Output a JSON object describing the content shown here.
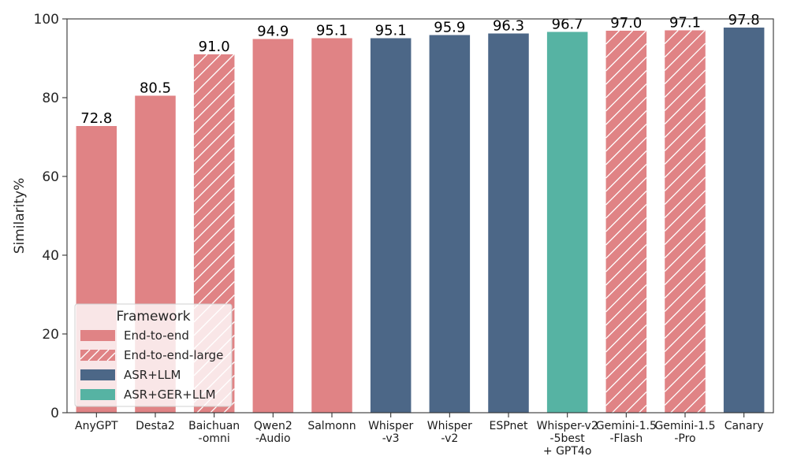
{
  "chart_data": {
    "type": "bar",
    "title": "",
    "xlabel": "",
    "ylabel": "Similarity%",
    "ylim": [
      0,
      100
    ],
    "yticks": [
      0,
      20,
      40,
      60,
      80,
      100
    ],
    "grid": false,
    "legend_position": "bottom-left",
    "legend_title": "Framework",
    "frameworks": [
      {
        "name": "End-to-end",
        "color": "#e08385",
        "hatch": false
      },
      {
        "name": "End-to-end-large",
        "color": "#e08385",
        "hatch": true
      },
      {
        "name": "ASR+LLM",
        "color": "#4c6787",
        "hatch": false
      },
      {
        "name": "ASR+GER+LLM",
        "color": "#56b3a3",
        "hatch": false
      }
    ],
    "bars": [
      {
        "category": [
          "AnyGPT"
        ],
        "value": 72.8,
        "label": "72.8",
        "framework": "End-to-end"
      },
      {
        "category": [
          "Desta2"
        ],
        "value": 80.5,
        "label": "80.5",
        "framework": "End-to-end"
      },
      {
        "category": [
          "Baichuan",
          "-omni"
        ],
        "value": 91.0,
        "label": "91.0",
        "framework": "End-to-end-large"
      },
      {
        "category": [
          "Qwen2",
          "-Audio"
        ],
        "value": 94.9,
        "label": "94.9",
        "framework": "End-to-end"
      },
      {
        "category": [
          "Salmonn"
        ],
        "value": 95.1,
        "label": "95.1",
        "framework": "End-to-end"
      },
      {
        "category": [
          "Whisper",
          "-v3"
        ],
        "value": 95.1,
        "label": "95.1",
        "framework": "ASR+LLM"
      },
      {
        "category": [
          "Whisper",
          "-v2"
        ],
        "value": 95.9,
        "label": "95.9",
        "framework": "ASR+LLM"
      },
      {
        "category": [
          "ESPnet"
        ],
        "value": 96.3,
        "label": "96.3",
        "framework": "ASR+LLM"
      },
      {
        "category": [
          "Whisper-v2",
          "-5best",
          "+ GPT4o"
        ],
        "value": 96.7,
        "label": "96.7",
        "framework": "ASR+GER+LLM"
      },
      {
        "category": [
          "Gemini-1.5",
          "-Flash"
        ],
        "value": 97.0,
        "label": "97.0",
        "framework": "End-to-end-large"
      },
      {
        "category": [
          "Gemini-1.5",
          "-Pro"
        ],
        "value": 97.1,
        "label": "97.1",
        "framework": "End-to-end-large"
      },
      {
        "category": [
          "Canary"
        ],
        "value": 97.8,
        "label": "97.8",
        "framework": "ASR+LLM"
      }
    ]
  }
}
